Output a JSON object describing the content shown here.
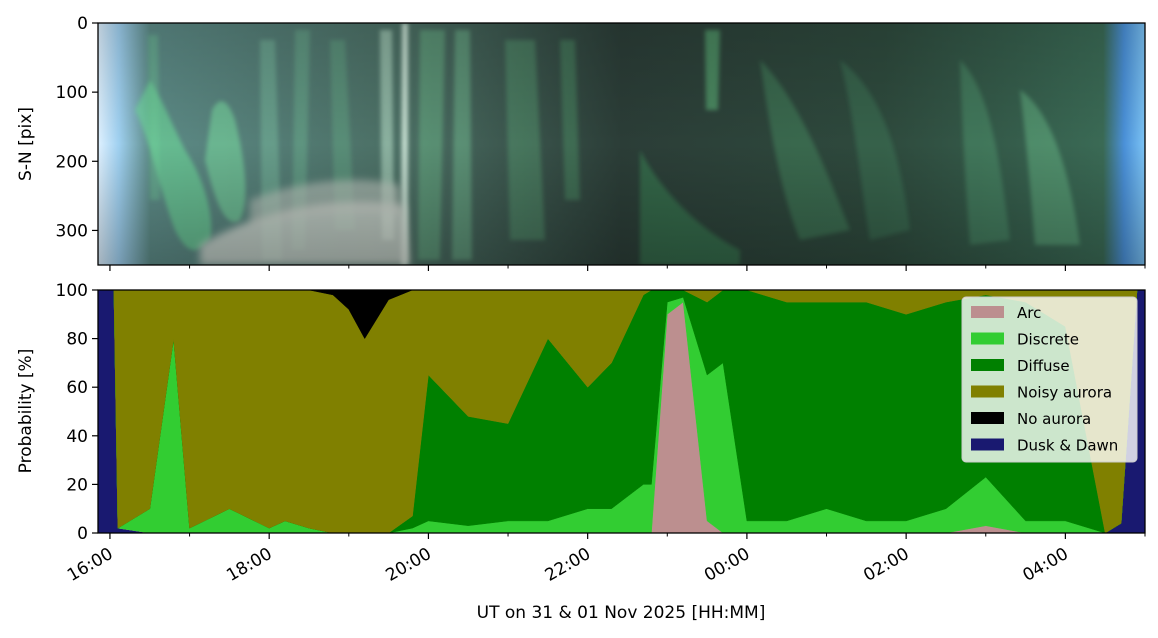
{
  "chart_data": [
    {
      "type": "heatmap",
      "kind": "keogram",
      "ylabel": "S-N [pix]",
      "ylim": [
        350,
        0
      ],
      "yticks": [
        "0",
        "100",
        "200",
        "300"
      ],
      "colors": {
        "sky_night": "#2a3d38",
        "sky_twilight": "#6fb5ee",
        "aurora": "#5fd98a",
        "cloud": "#c9cfc9"
      }
    },
    {
      "type": "area",
      "stacked": true,
      "ylabel": "Probability [%]",
      "xlabel": "UT on 31 & 01 Nov 2025 [HH:MM]",
      "ylim": [
        0,
        100
      ],
      "yticks": [
        "0",
        "20",
        "40",
        "60",
        "80",
        "100"
      ],
      "xlim": [
        15.85,
        29.0
      ],
      "xticks": [
        "16:00",
        "18:00",
        "20:00",
        "22:00",
        "00:00",
        "02:00",
        "04:00"
      ],
      "legend_position": "top-right",
      "grid": false,
      "legend": [
        {
          "name": "Arc",
          "color": "#bc8f8f"
        },
        {
          "name": "Discrete",
          "color": "#32cd32"
        },
        {
          "name": "Diffuse",
          "color": "#008000"
        },
        {
          "name": "Noisy aurora",
          "color": "#808000"
        },
        {
          "name": "No aurora",
          "color": "#000000"
        },
        {
          "name": "Dusk & Dawn",
          "color": "#191970"
        }
      ],
      "x": [
        15.85,
        16.05,
        16.1,
        16.5,
        16.8,
        17.0,
        17.5,
        18.0,
        18.2,
        18.5,
        18.8,
        19.0,
        19.2,
        19.5,
        19.8,
        20.0,
        20.5,
        21.0,
        21.5,
        22.0,
        22.3,
        22.7,
        22.8,
        23.0,
        23.2,
        23.5,
        23.7,
        24.0,
        24.5,
        25.0,
        25.5,
        26.0,
        26.5,
        27.0,
        27.5,
        28.0,
        28.5,
        28.7,
        28.9,
        29.0
      ],
      "series": [
        {
          "name": "Dusk & Dawn",
          "values": [
            100,
            100,
            2,
            0,
            0,
            0,
            0,
            0,
            0,
            0,
            0,
            0,
            0,
            0,
            0,
            0,
            0,
            0,
            0,
            0,
            0,
            0,
            0,
            0,
            0,
            0,
            0,
            0,
            0,
            0,
            0,
            0,
            0,
            0,
            0,
            0,
            0,
            4,
            100,
            100
          ]
        },
        {
          "name": "Arc",
          "values": [
            0,
            0,
            0,
            0,
            0,
            0,
            0,
            0,
            0,
            0,
            0,
            0,
            0,
            0,
            0,
            0,
            0,
            0,
            0,
            0,
            0,
            0,
            0,
            90,
            95,
            5,
            0,
            0,
            0,
            0,
            0,
            0,
            0,
            3,
            0,
            0,
            0,
            0,
            0,
            0
          ]
        },
        {
          "name": "Discrete",
          "values": [
            0,
            0,
            0,
            10,
            80,
            2,
            10,
            2,
            5,
            2,
            0,
            0,
            0,
            0,
            2,
            5,
            3,
            5,
            5,
            10,
            10,
            20,
            20,
            5,
            2,
            60,
            70,
            5,
            5,
            10,
            5,
            5,
            10,
            20,
            5,
            5,
            0,
            0,
            0,
            0
          ]
        },
        {
          "name": "Diffuse",
          "values": [
            0,
            0,
            0,
            0,
            0,
            0,
            0,
            0,
            0,
            0,
            0,
            0,
            0,
            0,
            5,
            60,
            45,
            40,
            75,
            50,
            60,
            78,
            80,
            5,
            3,
            30,
            30,
            95,
            90,
            85,
            90,
            85,
            85,
            75,
            90,
            80,
            0,
            0,
            0,
            0
          ]
        },
        {
          "name": "Noisy aurora",
          "values": [
            0,
            0,
            98,
            90,
            20,
            98,
            90,
            98,
            95,
            98,
            98,
            92,
            80,
            96,
            93,
            35,
            52,
            55,
            20,
            40,
            30,
            2,
            0,
            0,
            0,
            5,
            0,
            0,
            5,
            5,
            5,
            10,
            5,
            2,
            5,
            15,
            100,
            96,
            0,
            0
          ]
        },
        {
          "name": "No aurora",
          "values": [
            0,
            0,
            0,
            0,
            0,
            0,
            0,
            0,
            0,
            0,
            2,
            8,
            20,
            4,
            0,
            0,
            0,
            0,
            0,
            0,
            0,
            0,
            0,
            0,
            0,
            0,
            0,
            0,
            0,
            0,
            0,
            0,
            0,
            0,
            0,
            0,
            0,
            0,
            0,
            0
          ]
        }
      ]
    }
  ]
}
